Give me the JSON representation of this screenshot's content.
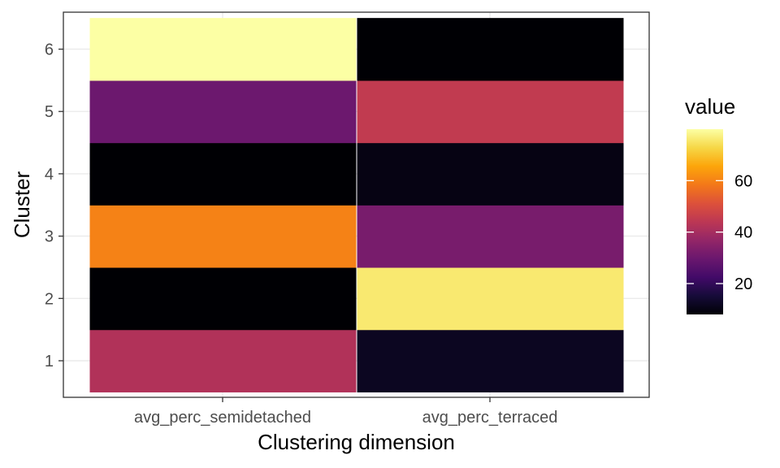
{
  "chart_data": {
    "type": "heatmap",
    "x_categories": [
      "avg_perc_semidetached",
      "avg_perc_terraced"
    ],
    "y_categories": [
      "1",
      "2",
      "3",
      "4",
      "5",
      "6"
    ],
    "xlabel": "Clustering dimension",
    "ylabel": "Cluster",
    "cells": [
      {
        "x": "avg_perc_semidetached",
        "y": "1",
        "value": 42
      },
      {
        "x": "avg_perc_semidetached",
        "y": "2",
        "value": 8
      },
      {
        "x": "avg_perc_semidetached",
        "y": "3",
        "value": 60
      },
      {
        "x": "avg_perc_semidetached",
        "y": "4",
        "value": 8
      },
      {
        "x": "avg_perc_semidetached",
        "y": "5",
        "value": 30
      },
      {
        "x": "avg_perc_semidetached",
        "y": "6",
        "value": 80
      },
      {
        "x": "avg_perc_terraced",
        "y": "1",
        "value": 12
      },
      {
        "x": "avg_perc_terraced",
        "y": "2",
        "value": 76
      },
      {
        "x": "avg_perc_terraced",
        "y": "3",
        "value": 32
      },
      {
        "x": "avg_perc_terraced",
        "y": "4",
        "value": 10
      },
      {
        "x": "avg_perc_terraced",
        "y": "5",
        "value": 45
      },
      {
        "x": "avg_perc_terraced",
        "y": "6",
        "value": 8
      }
    ],
    "colorscale": {
      "name": "inferno",
      "min": 8,
      "max": 80,
      "ticks": [
        20,
        40,
        60
      ]
    },
    "legend": {
      "title": "value",
      "position": "right"
    },
    "grid": true,
    "theme": "bw"
  }
}
